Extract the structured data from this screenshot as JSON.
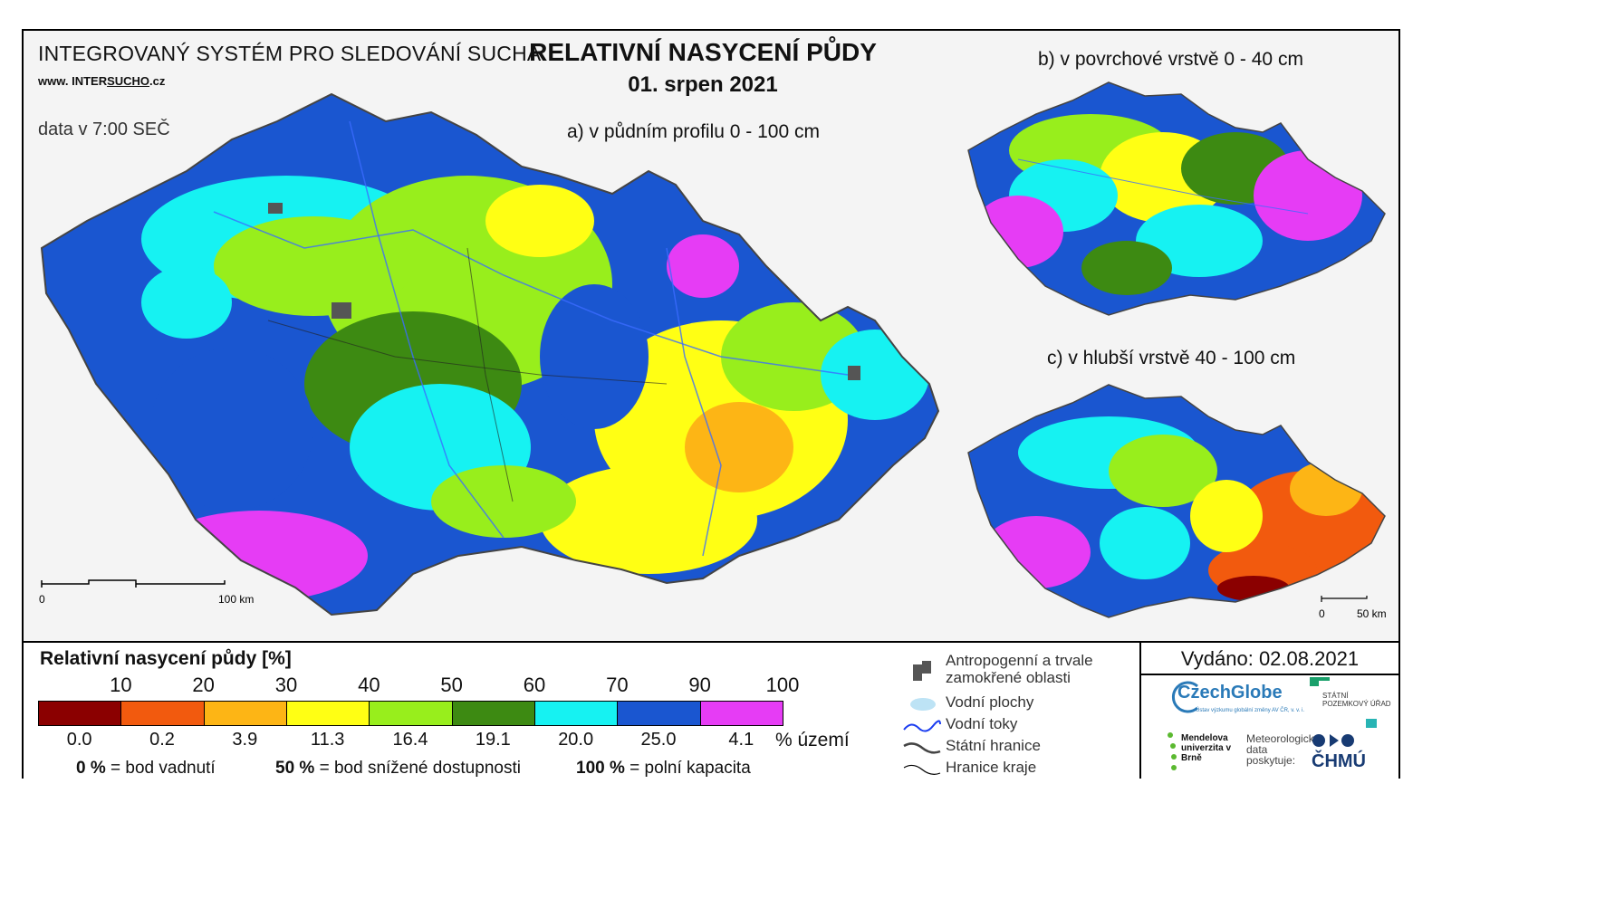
{
  "header": {
    "system_title": "INTEGROVANÝ SYSTÉM PRO SLEDOVÁNÍ SUCHA",
    "website_prefix": "www. INTER",
    "website_underlined": "SUCHO",
    "website_suffix": ".cz",
    "data_time": "data v 7:00 SEČ",
    "main_title": "RELATIVNÍ NASYCENÍ PŮDY",
    "date": "01. srpen 2021"
  },
  "maps": {
    "a_label": "a) v půdním profilu 0 - 100 cm",
    "b_label": "b) v povrchové vrstvě 0 - 40 cm",
    "c_label": "c) v hlubší vrstvě 40 - 100 cm",
    "scale_a": {
      "start": "0",
      "end": "100 km"
    },
    "scale_c": {
      "start": "0",
      "end": "50 km"
    }
  },
  "legend": {
    "title": "Relativní nasycení půdy [%]",
    "ticks": [
      "10",
      "20",
      "30",
      "40",
      "50",
      "60",
      "70",
      "90",
      "100"
    ],
    "classes": [
      {
        "color": "#8b0000",
        "share": "0.0"
      },
      {
        "color": "#f25a0e",
        "share": "0.2"
      },
      {
        "color": "#fdb515",
        "share": "3.9"
      },
      {
        "color": "#ffff14",
        "share": "11.3"
      },
      {
        "color": "#98ee1c",
        "share": "16.4"
      },
      {
        "color": "#3d8a12",
        "share": "19.1"
      },
      {
        "color": "#16f2f2",
        "share": "20.0"
      },
      {
        "color": "#1a56d0",
        "share": "25.0"
      },
      {
        "color": "#e63cf5",
        "share": "4.1"
      }
    ],
    "share_unit": "% území",
    "definitions": [
      {
        "value": "0 %",
        "text": "= bod vadnutí"
      },
      {
        "value": "50 %",
        "text": "= bod snížené dostupnosti"
      },
      {
        "value": "100 %",
        "text": "= polní kapacita"
      }
    ]
  },
  "symbols": {
    "anthropogenic": "Antropogenní a trvale zamokřené oblasti",
    "water_bodies": "Vodní plochy",
    "rivers": "Vodní toky",
    "state_border": "Státní hranice",
    "region_border": "Hranice kraje"
  },
  "footer": {
    "issued": "Vydáno: 02.08.2021",
    "czechglobe": "CzechGlobe",
    "czechglobe_sub": "Ústav výzkumu globální změny AV ČR, v. v. i.",
    "spu": "STÁTNÍ POZEMKOVÝ ÚŘAD",
    "mendel": "Mendelova univerzita v Brně",
    "met_text": "Meteorologická data poskytuje:",
    "chmu": "ČHMÚ"
  }
}
